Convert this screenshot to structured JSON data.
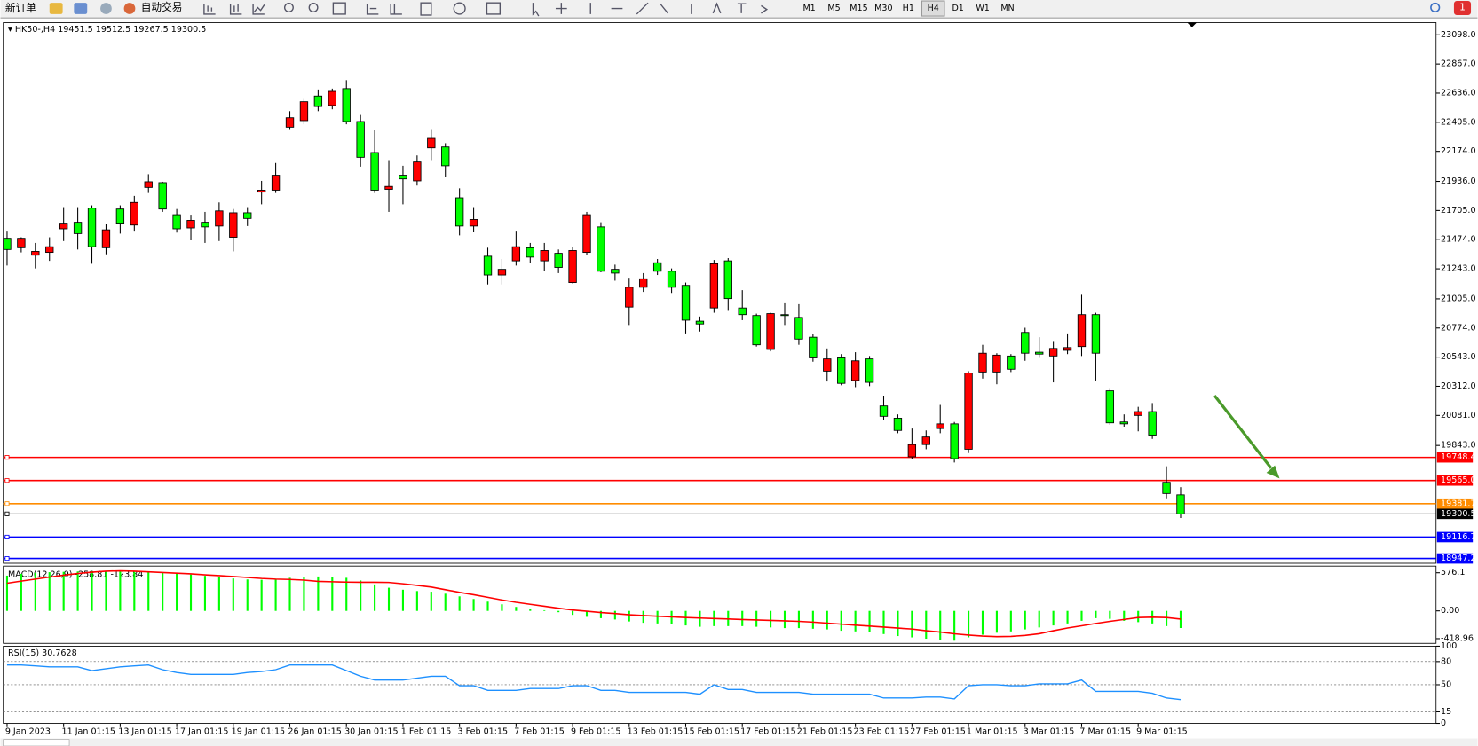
{
  "toolbar": {
    "new_order": "新订单",
    "auto_trading": "自动交易",
    "timeframes": [
      "M1",
      "M5",
      "M15",
      "M30",
      "H1",
      "H4",
      "D1",
      "W1",
      "MN"
    ],
    "notification_count": 1
  },
  "chart_data": {
    "type": "candlestick",
    "symbol": "HK50-,H4",
    "categories": [
      "9 Jan 2023",
      null,
      null,
      null,
      "11 Jan 01:15",
      null,
      null,
      null,
      "13 Jan 01:15",
      null,
      null,
      null,
      "17 Jan 01:15",
      null,
      null,
      null,
      "19 Jan 01:15",
      null,
      null,
      null,
      "26 Jan 01:15",
      null,
      null,
      null,
      "30 Jan 01:15",
      null,
      null,
      null,
      "1 Feb 01:15",
      null,
      null,
      null,
      "3 Feb 01:15",
      null,
      null,
      null,
      "7 Feb 01:15",
      null,
      null,
      null,
      "9 Feb 01:15",
      null,
      null,
      null,
      "13 Feb 01:15",
      null,
      null,
      null,
      "15 Feb 01:15",
      null,
      null,
      null,
      "17 Feb 01:15",
      null,
      null,
      null,
      "21 Feb 01:15",
      null,
      null,
      null,
      "23 Feb 01:15",
      null,
      null,
      null,
      "27 Feb 01:15",
      null,
      null,
      null,
      "1 Mar 01:15",
      null,
      null,
      null,
      "3 Mar 01:15",
      null,
      null,
      null,
      "7 Mar 01:15",
      null,
      null,
      null,
      "9 Mar 01:15",
      null,
      null,
      null
    ],
    "open": [
      21485,
      21410,
      21351,
      21373,
      21560,
      21612,
      21724,
      21410,
      21717,
      21590,
      21888,
      21926,
      21672,
      21567,
      21612,
      21582,
      21493,
      21687,
      21851,
      21866,
      22366,
      22418,
      22613,
      22538,
      22672,
      22411,
      22165,
      21873,
      21985,
      21940,
      22202,
      22209,
      21806,
      21582,
      21343,
      21194,
      21306,
      21410,
      21306,
      21366,
      21134,
      21373,
      21575,
      21239,
      20940,
      21097,
      21291,
      21224,
      21112,
      20828,
      20933,
      21306,
      20933,
      20873,
      20604,
      20880,
      20858,
      20701,
      20432,
      20537,
      20358,
      20529,
      20156,
      20059,
      19753,
      19850,
      19977,
      20014,
      19813,
      20425,
      20425,
      20552,
      20739,
      20582,
      20552,
      20597,
      20627,
      20880,
      20276,
      20029,
      20081,
      20111,
      19551,
      19451.5
    ],
    "high": [
      21545,
      21493,
      21448,
      21493,
      21732,
      21732,
      21746,
      21597,
      21746,
      21821,
      21993,
      21933,
      21717,
      21672,
      21694,
      21769,
      21717,
      21732,
      21940,
      22082,
      22493,
      22590,
      22665,
      22672,
      22739,
      22463,
      22344,
      22105,
      22060,
      22142,
      22351,
      22239,
      21881,
      21732,
      21410,
      21321,
      21545,
      21448,
      21448,
      21396,
      21418,
      21694,
      21612,
      21276,
      21172,
      21209,
      21321,
      21246,
      21134,
      20865,
      21313,
      21328,
      21074,
      20888,
      20895,
      20970,
      20963,
      20724,
      20612,
      20567,
      20582,
      20552,
      20238,
      20089,
      19977,
      19962,
      20164,
      20029,
      20432,
      20641,
      20574,
      20567,
      20776,
      20701,
      20671,
      20731,
      21037,
      20895,
      20298,
      20089,
      20149,
      20179,
      19678,
      19512.5
    ],
    "low": [
      21269,
      21373,
      21246,
      21306,
      21463,
      21396,
      21283,
      21358,
      21522,
      21545,
      21844,
      21694,
      21530,
      21470,
      21448,
      21463,
      21381,
      21582,
      21754,
      21844,
      22351,
      22389,
      22493,
      22508,
      22389,
      22053,
      21844,
      21694,
      21754,
      21903,
      22105,
      21970,
      21508,
      21537,
      21119,
      21119,
      21269,
      21291,
      21224,
      21209,
      21127,
      21351,
      21216,
      21149,
      20798,
      21060,
      21194,
      21052,
      20731,
      20746,
      20895,
      20910,
      20836,
      20627,
      20589,
      20798,
      20641,
      20507,
      20350,
      20320,
      20305,
      20313,
      20044,
      19940,
      19738,
      19813,
      19940,
      19708,
      19783,
      20373,
      20328,
      20425,
      20514,
      20537,
      20343,
      20567,
      20552,
      20358,
      20007,
      19992,
      19955,
      19895,
      19424,
      19267.5
    ],
    "close": [
      21396,
      21485,
      21381,
      21418,
      21605,
      21522,
      21418,
      21552,
      21605,
      21769,
      21933,
      21717,
      21560,
      21627,
      21575,
      21702,
      21687,
      21642,
      21866,
      21985,
      22441,
      22568,
      22530,
      22650,
      22411,
      22127,
      21866,
      21896,
      21956,
      22090,
      22277,
      22060,
      21582,
      21634,
      21194,
      21239,
      21418,
      21336,
      21388,
      21254,
      21388,
      21672,
      21224,
      21209,
      21097,
      21164,
      21224,
      21097,
      20836,
      20806,
      21283,
      21007,
      20880,
      20641,
      20888,
      20873,
      20686,
      20537,
      20529,
      20335,
      20514,
      20343,
      20074,
      19962,
      19850,
      19910,
      20014,
      19738,
      20417,
      20574,
      20559,
      20447,
      20574,
      20567,
      20612,
      20619,
      20880,
      20574,
      20022,
      20014,
      20111,
      19925,
      19462,
      19300.5
    ],
    "up_color": "#ff0000",
    "down_color": "#00ff00",
    "ylim": [
      18909,
      23195
    ],
    "yticks": [
      {
        "value": 23098,
        "label": "23098.0"
      },
      {
        "value": 22867,
        "label": "22867.0"
      },
      {
        "value": 22636,
        "label": "22636.0"
      },
      {
        "value": 22405,
        "label": "22405.0"
      },
      {
        "value": 22174,
        "label": "22174.0"
      },
      {
        "value": 21936,
        "label": "21936.0"
      },
      {
        "value": 21705,
        "label": "21705.0"
      },
      {
        "value": 21474,
        "label": "21474.0"
      },
      {
        "value": 21243,
        "label": "21243.0"
      },
      {
        "value": 21005,
        "label": "21005.0"
      },
      {
        "value": 20774,
        "label": "20774.0"
      },
      {
        "value": 20543,
        "label": "20543.0"
      },
      {
        "value": 20312,
        "label": "20312.0"
      },
      {
        "value": 20081,
        "label": "20081.0"
      },
      {
        "value": 19843,
        "label": "19843.0"
      }
    ],
    "hlines": [
      {
        "value": 19748.4,
        "color": "#ff0000"
      },
      {
        "value": 19565,
        "label": "19565.0",
        "color": "#ff0000"
      },
      {
        "value": 19381.7,
        "color": "#ff8c00"
      },
      {
        "value": 19300.5,
        "color": "#000000"
      },
      {
        "value": 19116.7,
        "color": "#0000ff"
      },
      {
        "value": 18947.2,
        "color": "#0000ff"
      }
    ],
    "macd": {
      "label": "MACD(12,26,9)",
      "color": "#00ff00",
      "signal_color": "#ff0000",
      "values": [
        533,
        560,
        575,
        585,
        590,
        595,
        600,
        600,
        598,
        590,
        595,
        585,
        570,
        550,
        530,
        510,
        490,
        475,
        470,
        480,
        500,
        510,
        520,
        515,
        500,
        460,
        400,
        350,
        320,
        300,
        290,
        260,
        220,
        180,
        140,
        100,
        60,
        30,
        10,
        -20,
        -60,
        -90,
        -110,
        -130,
        -160,
        -180,
        -190,
        -200,
        -220,
        -240,
        -230,
        -230,
        -230,
        -240,
        -250,
        -260,
        -260,
        -270,
        -280,
        -300,
        -310,
        -320,
        -350,
        -380,
        -400,
        -420,
        -440,
        -450,
        -400,
        -360,
        -330,
        -310,
        -280,
        -250,
        -220,
        -190,
        -150,
        -110,
        -120,
        -150,
        -170,
        -190,
        -230,
        -258.81
      ],
      "signal": [
        418,
        450,
        480,
        510,
        540,
        565,
        585,
        600,
        605,
        600,
        590,
        580,
        570,
        560,
        545,
        533,
        520,
        505,
        490,
        480,
        475,
        465,
        446,
        440,
        435,
        432,
        432,
        430,
        410,
        385,
        360,
        320,
        280,
        245,
        205,
        165,
        130,
        100,
        70,
        40,
        14,
        -5,
        -25,
        -40,
        -58,
        -70,
        -80,
        -90,
        -100,
        -108,
        -115,
        -122,
        -130,
        -137,
        -144,
        -151,
        -158,
        -170,
        -185,
        -200,
        -216,
        -230,
        -245,
        -260,
        -274,
        -300,
        -320,
        -346,
        -365,
        -380,
        -389,
        -385,
        -370,
        -345,
        -300,
        -259,
        -225,
        -190,
        -158,
        -130,
        -100,
        -95,
        -100,
        -123.84
      ],
      "ylim": [
        -490,
        677
      ],
      "yticks": [
        576.1,
        {
          "value": 0,
          "label": "0.00"
        },
        -418.96
      ]
    },
    "rsi": {
      "label": "RSI(15)",
      "color": "#1e90ff",
      "values": [
        75.6,
        75.6,
        74.4,
        73.2,
        73.2,
        73.2,
        68.3,
        70.7,
        73.2,
        74.4,
        75.6,
        69.5,
        65.9,
        63.4,
        63.4,
        63.4,
        63.4,
        65.9,
        67.1,
        69.5,
        75.6,
        75.6,
        75.6,
        75.6,
        68.3,
        61,
        56.1,
        56.1,
        56.1,
        58.5,
        61,
        61,
        48.8,
        48.8,
        42.7,
        42.7,
        42.7,
        45.1,
        45.1,
        45.1,
        48.8,
        48.8,
        42.7,
        42.7,
        40.2,
        40.2,
        40.2,
        40.2,
        40.2,
        37.8,
        50,
        43.9,
        43.9,
        40.2,
        40.2,
        40.2,
        40.2,
        37.8,
        37.8,
        37.8,
        37.8,
        37.8,
        32.9,
        32.9,
        32.9,
        34.1,
        34.1,
        31.7,
        48.8,
        50,
        50,
        48.8,
        48.8,
        51.2,
        51.2,
        51.2,
        56.1,
        41.5,
        41.5,
        41.5,
        41.5,
        39,
        32.9,
        30.7628
      ],
      "ylim": [
        0,
        100
      ],
      "yticks": [
        100,
        80,
        50,
        15,
        0
      ]
    }
  }
}
